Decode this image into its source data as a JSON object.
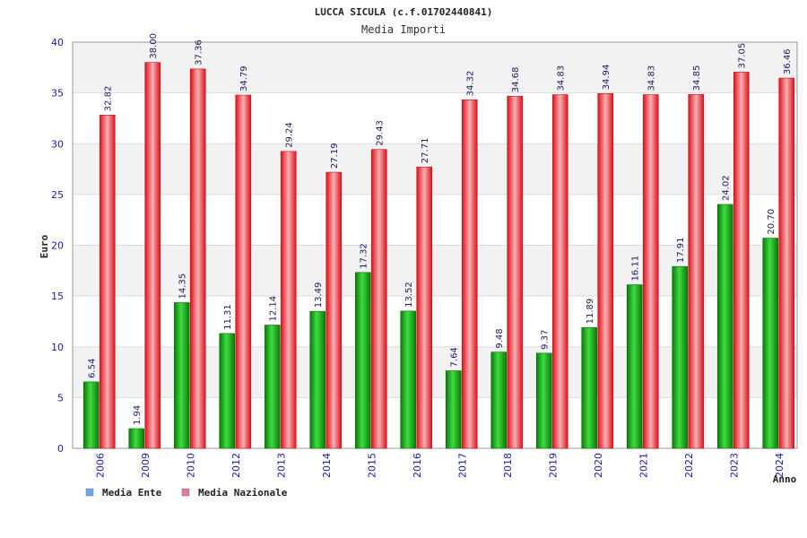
{
  "chart_data": {
    "type": "bar",
    "title": "LUCCA SICULA (c.f.01702440841)",
    "subtitle": "Media Importi",
    "xlabel": "Anno",
    "ylabel": "Euro",
    "ylim": [
      0,
      40
    ],
    "yticks": [
      0,
      5,
      10,
      15,
      20,
      25,
      30,
      35,
      40
    ],
    "grid": true,
    "legend_position": "bottom-left",
    "categories": [
      "2006",
      "2009",
      "2010",
      "2012",
      "2013",
      "2014",
      "2015",
      "2016",
      "2017",
      "2018",
      "2019",
      "2020",
      "2021",
      "2022",
      "2023",
      "2024"
    ],
    "series": [
      {
        "name": "Media Ente",
        "values": [
          6.54,
          1.94,
          14.35,
          11.31,
          12.14,
          13.49,
          17.32,
          13.52,
          7.64,
          9.48,
          9.37,
          11.89,
          16.11,
          17.91,
          24.02,
          20.7
        ],
        "labels": [
          "6.54",
          "1.94",
          "14.35",
          "11.31",
          "12.14",
          "13.49",
          "17.32",
          "13.52",
          "7.64",
          "9.48",
          "9.37",
          "11.89",
          "16.11",
          "17.91",
          "24.02",
          "20.70"
        ],
        "color": "#1faa1f",
        "legend_color": "#6fa8e8"
      },
      {
        "name": "Media Nazionale",
        "values": [
          32.82,
          38.0,
          37.36,
          34.79,
          29.24,
          27.19,
          29.43,
          27.71,
          34.32,
          34.68,
          34.83,
          34.94,
          34.83,
          34.85,
          37.05,
          36.46
        ],
        "labels": [
          "32.82",
          "38.00",
          "37.36",
          "34.79",
          "29.24",
          "27.19",
          "29.43",
          "27.71",
          "34.32",
          "34.68",
          "34.83",
          "34.94",
          "34.83",
          "34.85",
          "37.05",
          "36.46"
        ],
        "color": "#e8202a",
        "legend_color": "#e07aa8"
      }
    ]
  },
  "colors": {
    "band": "#f2f2f2",
    "grid": "#dddddd",
    "axis": "#999999"
  }
}
